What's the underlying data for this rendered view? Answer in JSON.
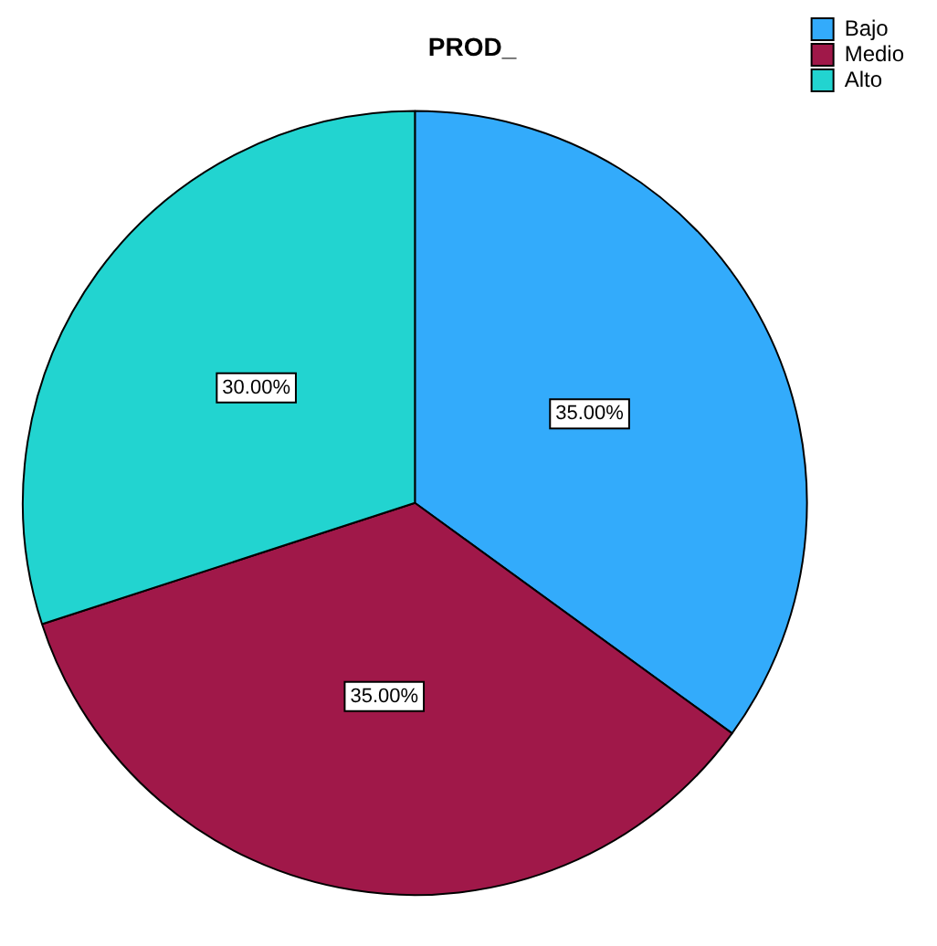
{
  "chart_data": {
    "type": "pie",
    "title": "PROD_",
    "categories": [
      "Bajo",
      "Medio",
      "Alto"
    ],
    "values": [
      35,
      35,
      30
    ],
    "colors": [
      "#33abfb",
      "#a01849",
      "#22d4d0"
    ],
    "value_labels": [
      "35.00%",
      "35.00%",
      "30.00%"
    ],
    "legend": "top right"
  }
}
